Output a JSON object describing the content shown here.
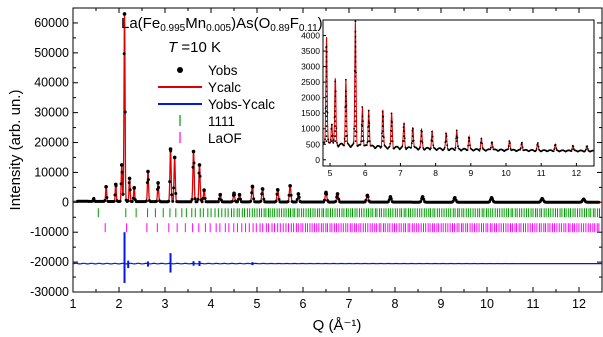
{
  "chart_data": [
    {
      "type": "line",
      "title": "La(Fe0.995Mn0.005)As(O0.89F0.11)",
      "title_parts": {
        "prefix": "La(Fe",
        "s1": "0.995",
        "mid1": "Mn",
        "s2": "0.005",
        "mid2": ")As(O",
        "s3": "0.89",
        "mid3": "F",
        "s4": "0.11",
        "suffix": ")"
      },
      "temperature": {
        "symbol": "T",
        "value": " =10 K"
      },
      "xlabel": "Q (Å⁻¹)",
      "ylabel": "Intensity (arb. un.)",
      "xlim": [
        1,
        12.5
      ],
      "ylim": [
        -30000,
        65000
      ],
      "xticks": [
        "1",
        "2",
        "3",
        "4",
        "5",
        "6",
        "7",
        "8",
        "9",
        "10",
        "11",
        "12"
      ],
      "yticks": [
        "-30000",
        "-20000",
        "-10000",
        "0",
        "10000",
        "20000",
        "30000",
        "40000",
        "50000",
        "60000"
      ],
      "legend_position": "upper-center",
      "series": [
        {
          "name": "Yobs",
          "style": "dots",
          "color": "#000000",
          "x": [
            1.45,
            1.72,
            1.93,
            2.06,
            2.12,
            2.23,
            2.33,
            2.63,
            2.85,
            3.12,
            3.21,
            3.62,
            3.75,
            3.85,
            4.2,
            4.5,
            4.62,
            4.9,
            5.12,
            5.45,
            5.72,
            5.9,
            6.5,
            6.75,
            7.4,
            7.9,
            8.6,
            9.3,
            10.1,
            11.2,
            12.1
          ],
          "y": [
            1000,
            5200,
            6000,
            12500,
            63000,
            8000,
            4800,
            10300,
            6500,
            17800,
            15000,
            17000,
            12500,
            4000,
            2500,
            3000,
            2500,
            5300,
            4500,
            4200,
            5500,
            2800,
            3300,
            2800,
            2300,
            1800,
            1800,
            1500,
            1500,
            1200,
            1000
          ]
        },
        {
          "name": "Ycalc",
          "style": "line",
          "color": "#e00000"
        },
        {
          "name": "Yobs-Ycalc",
          "style": "line",
          "color": "#0018e8",
          "offset": -20500,
          "spikes": [
            {
              "x": 2.12,
              "y_high": -10000,
              "y_low": -27000
            },
            {
              "x": 2.2,
              "y_high": -19500,
              "y_low": -22000
            },
            {
              "x": 2.63,
              "y_high": -19800,
              "y_low": -21500
            },
            {
              "x": 3.12,
              "y_high": -17000,
              "y_low": -23500
            },
            {
              "x": 3.62,
              "y_high": -19700,
              "y_low": -21200
            },
            {
              "x": 3.75,
              "y_high": -19600,
              "y_low": -21300
            },
            {
              "x": 4.9,
              "y_high": -20000,
              "y_low": -21000
            }
          ]
        },
        {
          "name": "1111",
          "style": "tick-marks",
          "color": "#009a00",
          "y_center": -3500
        },
        {
          "name": "LaOF",
          "style": "tick-marks",
          "color": "#ff00ff",
          "y_center": -8500
        }
      ]
    },
    {
      "type": "line",
      "inset": true,
      "xlim": [
        4.8,
        12.5
      ],
      "xticks": [
        "5",
        "6",
        "7",
        "8",
        "9",
        "10",
        "11",
        "12"
      ],
      "yticks": [
        "0",
        "500",
        "1000",
        "1500",
        "2000",
        "2500",
        "3000",
        "3500",
        "4000"
      ],
      "grid": false,
      "peaks": [
        {
          "x": 4.9,
          "y": 3700
        },
        {
          "x": 5.05,
          "y": 900
        },
        {
          "x": 5.15,
          "y": 2300
        },
        {
          "x": 5.45,
          "y": 2300
        },
        {
          "x": 5.72,
          "y": 4200
        },
        {
          "x": 5.92,
          "y": 1500
        },
        {
          "x": 6.1,
          "y": 1400
        },
        {
          "x": 6.5,
          "y": 1400
        },
        {
          "x": 6.75,
          "y": 1300
        },
        {
          "x": 7.1,
          "y": 1000
        },
        {
          "x": 7.35,
          "y": 900
        },
        {
          "x": 7.6,
          "y": 800
        },
        {
          "x": 7.9,
          "y": 750
        },
        {
          "x": 8.3,
          "y": 700
        },
        {
          "x": 8.6,
          "y": 800
        },
        {
          "x": 8.95,
          "y": 620
        },
        {
          "x": 9.3,
          "y": 550
        },
        {
          "x": 9.6,
          "y": 500
        },
        {
          "x": 10.1,
          "y": 520
        },
        {
          "x": 10.45,
          "y": 470
        },
        {
          "x": 10.9,
          "y": 430
        },
        {
          "x": 11.4,
          "y": 400
        },
        {
          "x": 11.9,
          "y": 380
        },
        {
          "x": 12.3,
          "y": 350
        }
      ]
    }
  ]
}
